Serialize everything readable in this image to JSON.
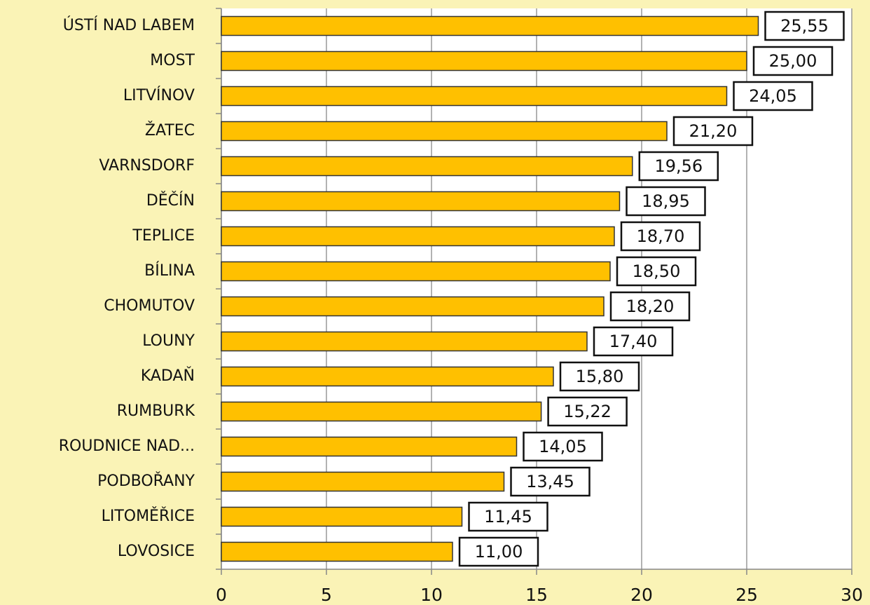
{
  "chart_data": {
    "type": "bar",
    "orientation": "horizontal",
    "categories": [
      "ÚSTÍ NAD LABEM",
      "MOST",
      "LITVÍNOV",
      "ŽATEC",
      "VARNSDORF",
      "DĚČÍN",
      "TEPLICE",
      "BÍLINA",
      "CHOMUTOV",
      "LOUNY",
      "KADAŇ",
      "RUMBURK",
      "ROUDNICE NAD...",
      "PODBOŘANY",
      "LITOMĚŘICE",
      "LOVOSICE"
    ],
    "values": [
      25.55,
      25,
      24.05,
      21.2,
      19.56,
      18.95,
      18.7,
      18.5,
      18.2,
      17.4,
      15.8,
      15.22,
      14.05,
      13.45,
      11.45,
      11
    ],
    "value_labels": [
      "25,55",
      "25,00",
      "24,05",
      "21,20",
      "19,56",
      "18,95",
      "18,70",
      "18,50",
      "18,20",
      "17,40",
      "15,80",
      "15,22",
      "14,05",
      "13,45",
      "11,45",
      "11,00"
    ],
    "color": "#ffc000",
    "xlim": [
      0,
      30
    ],
    "xticks": [
      0,
      5,
      10,
      15,
      20,
      25,
      30
    ],
    "grid": true
  }
}
